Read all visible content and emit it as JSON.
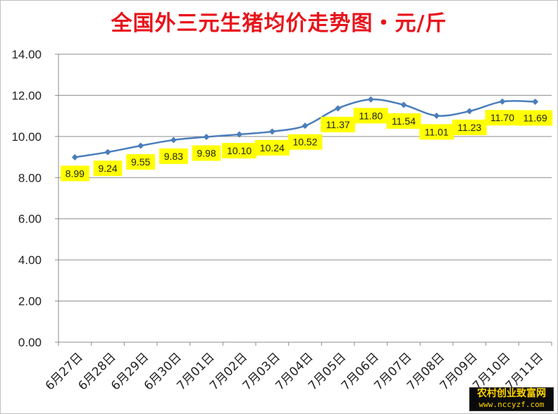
{
  "chart_data": {
    "type": "line",
    "title": "全国外三元生猪均价走势图・元/斤",
    "categories": [
      "6月27日",
      "6月28日",
      "6月29日",
      "6月30日",
      "7月01日",
      "7月02日",
      "7月03日",
      "7月04日",
      "7月05日",
      "7月06日",
      "7月07日",
      "7月08日",
      "7月09日",
      "7月10日",
      "7月11日"
    ],
    "series": [
      {
        "values": [
          8.99,
          9.24,
          9.55,
          9.83,
          9.98,
          10.1,
          10.24,
          10.52,
          11.37,
          11.8,
          11.54,
          11.01,
          11.23,
          11.7,
          11.69
        ]
      }
    ],
    "data_labels": [
      "8.99",
      "9.24",
      "9.55",
      "9.83",
      "9.98",
      "10.10",
      "10.24",
      "10.52",
      "11.37",
      "11.80",
      "11.54",
      "11.01",
      "11.23",
      "11.70",
      "11.69"
    ],
    "yticks": [
      "0.00",
      "2.00",
      "4.00",
      "6.00",
      "8.00",
      "10.00",
      "12.00",
      "14.00"
    ],
    "ylim": [
      0,
      14
    ],
    "grid": true,
    "legend": "none",
    "line_color": "#4a7ebb",
    "label_background": "#ffff00"
  },
  "watermark": {
    "title": "农村创业致富网",
    "url": "www.nccyzf.com"
  }
}
